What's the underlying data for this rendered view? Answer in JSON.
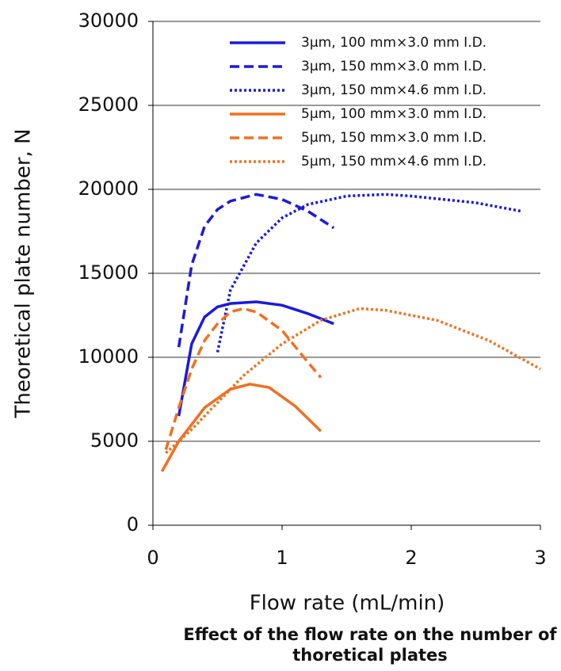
{
  "chart_data": {
    "type": "line",
    "caption": "Effect of the flow rate on the number of thoretical plates",
    "x_label": "Flow rate (mL/min)",
    "y_label": "Theoretical plate number, N",
    "xlim": [
      0,
      3
    ],
    "xticks": [
      0,
      1,
      2,
      3
    ],
    "ylim": [
      0,
      30000
    ],
    "yticks": [
      0,
      5000,
      10000,
      15000,
      20000,
      25000,
      30000
    ],
    "grid": true,
    "legend": "top-right",
    "series": [
      {
        "name": "3μm, 100 mm×3.0 mm I.D.",
        "color": "#1a1adb",
        "dash": "solid",
        "x": [
          0.2,
          0.3,
          0.4,
          0.5,
          0.6,
          0.8,
          1.0,
          1.2,
          1.4
        ],
        "values": [
          6500,
          10800,
          12400,
          13000,
          13200,
          13300,
          13100,
          12600,
          12000
        ]
      },
      {
        "name": "3μm, 150 mm×3.0 mm I.D.",
        "color": "#1a1adb",
        "dash": "dashed",
        "x": [
          0.2,
          0.3,
          0.4,
          0.5,
          0.6,
          0.8,
          1.0,
          1.2,
          1.4
        ],
        "values": [
          10600,
          15500,
          17800,
          18800,
          19300,
          19700,
          19400,
          18700,
          17700
        ]
      },
      {
        "name": "3μm, 150 mm×4.6 mm I.D.",
        "color": "#1a1adb",
        "dash": "dotted",
        "x": [
          0.5,
          0.6,
          0.8,
          1.0,
          1.2,
          1.5,
          1.8,
          2.0,
          2.5,
          2.85
        ],
        "values": [
          10300,
          14000,
          16800,
          18300,
          19100,
          19600,
          19700,
          19600,
          19200,
          18700
        ]
      },
      {
        "name": "5μm, 100 mm×3.0 mm I.D.",
        "color": "#f07020",
        "dash": "solid",
        "x": [
          0.07,
          0.2,
          0.4,
          0.6,
          0.75,
          0.9,
          1.1,
          1.3
        ],
        "values": [
          3200,
          5000,
          7000,
          8100,
          8400,
          8200,
          7100,
          5600
        ]
      },
      {
        "name": "5μm, 150 mm×3.0 mm I.D.",
        "color": "#f07020",
        "dash": "dashed",
        "x": [
          0.1,
          0.2,
          0.3,
          0.4,
          0.5,
          0.6,
          0.7,
          0.8,
          1.0,
          1.2,
          1.3
        ],
        "values": [
          4500,
          7000,
          9300,
          11000,
          12000,
          12700,
          12900,
          12700,
          11600,
          9700,
          8800
        ]
      },
      {
        "name": "5μm, 150 mm×4.6 mm I.D.",
        "color": "#f07020",
        "dash": "dotted",
        "x": [
          0.1,
          0.3,
          0.5,
          0.7,
          1.0,
          1.3,
          1.6,
          1.8,
          2.2,
          2.6,
          3.0
        ],
        "values": [
          4300,
          5700,
          7300,
          8900,
          10800,
          12200,
          12900,
          12800,
          12200,
          11000,
          9300
        ]
      }
    ]
  }
}
